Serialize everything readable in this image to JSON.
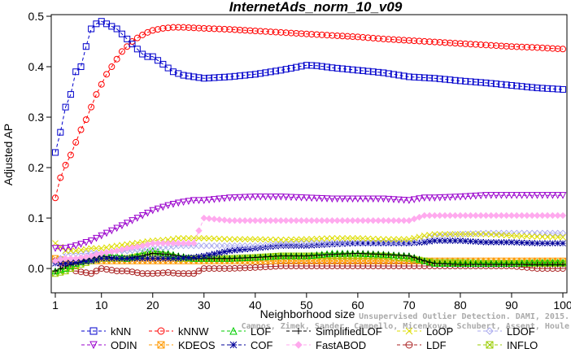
{
  "chart_data": {
    "type": "line",
    "title": "InternetAds_norm_10_v09",
    "xlabel": "Neighborhood size",
    "ylabel": "Adjusted AP",
    "xlim": [
      1,
      100
    ],
    "ylim": [
      -0.045,
      0.5
    ],
    "xticks": [
      1,
      10,
      20,
      30,
      40,
      50,
      60,
      70,
      80,
      90,
      100
    ],
    "yticks": [
      0.0,
      0.1,
      0.2,
      0.3,
      0.4,
      0.5
    ],
    "ytick_labels": [
      "0.0",
      "0.1",
      "0.2",
      "0.3",
      "0.4",
      "0.5"
    ],
    "grid": false,
    "legend_position": "bottom",
    "series": [
      {
        "name": "kNN",
        "color": "#0000cc",
        "marker": "square",
        "x": [
          1,
          2,
          3,
          4,
          5,
          6,
          7,
          8,
          9,
          10,
          11,
          12,
          13,
          14,
          15,
          16,
          17,
          18,
          19,
          20,
          22,
          24,
          26,
          28,
          30,
          35,
          40,
          45,
          50,
          52,
          55,
          60,
          65,
          70,
          75,
          80,
          85,
          90,
          95,
          100
        ],
        "y": [
          0.23,
          0.27,
          0.32,
          0.345,
          0.39,
          0.4,
          0.44,
          0.475,
          0.485,
          0.49,
          0.485,
          0.48,
          0.475,
          0.465,
          0.455,
          0.445,
          0.435,
          0.425,
          0.42,
          0.42,
          0.405,
          0.39,
          0.383,
          0.38,
          0.377,
          0.38,
          0.385,
          0.393,
          0.403,
          0.402,
          0.398,
          0.393,
          0.388,
          0.38,
          0.377,
          0.372,
          0.368,
          0.363,
          0.358,
          0.355
        ]
      },
      {
        "name": "kNNW",
        "color": "#ff0000",
        "marker": "circle",
        "x": [
          1,
          2,
          3,
          4,
          5,
          6,
          7,
          8,
          9,
          10,
          11,
          12,
          13,
          14,
          15,
          16,
          17,
          18,
          19,
          20,
          22,
          24,
          26,
          28,
          30,
          35,
          40,
          45,
          50,
          55,
          60,
          65,
          70,
          75,
          80,
          85,
          90,
          95,
          100
        ],
        "y": [
          0.14,
          0.18,
          0.205,
          0.225,
          0.25,
          0.275,
          0.295,
          0.32,
          0.345,
          0.365,
          0.385,
          0.4,
          0.415,
          0.43,
          0.44,
          0.45,
          0.457,
          0.463,
          0.468,
          0.472,
          0.476,
          0.478,
          0.478,
          0.477,
          0.476,
          0.474,
          0.471,
          0.468,
          0.465,
          0.462,
          0.459,
          0.455,
          0.452,
          0.449,
          0.446,
          0.443,
          0.44,
          0.438,
          0.435
        ]
      },
      {
        "name": "LOF",
        "color": "#00cc00",
        "marker": "triangle-up",
        "x": [
          1,
          3,
          5,
          8,
          10,
          13,
          15,
          18,
          20,
          23,
          25,
          28,
          30,
          35,
          40,
          45,
          50,
          55,
          60,
          65,
          70,
          73,
          75,
          80,
          85,
          90,
          95,
          100
        ],
        "y": [
          -0.005,
          0.0,
          0.01,
          0.02,
          0.03,
          0.025,
          0.02,
          0.03,
          0.035,
          0.03,
          0.025,
          0.02,
          0.02,
          0.02,
          0.022,
          0.025,
          0.025,
          0.03,
          0.03,
          0.028,
          0.025,
          0.015,
          0.01,
          0.01,
          0.01,
          0.01,
          0.012,
          0.012
        ]
      },
      {
        "name": "SimplifiedLOF",
        "color": "#000000",
        "marker": "plus",
        "x": [
          1,
          3,
          5,
          8,
          10,
          13,
          15,
          18,
          20,
          23,
          25,
          28,
          30,
          35,
          40,
          45,
          50,
          55,
          60,
          65,
          70,
          73,
          75,
          80,
          85,
          90,
          95,
          100
        ],
        "y": [
          -0.005,
          0.005,
          0.01,
          0.02,
          0.025,
          0.02,
          0.02,
          0.025,
          0.03,
          0.028,
          0.025,
          0.02,
          0.02,
          0.02,
          0.022,
          0.025,
          0.025,
          0.028,
          0.03,
          0.028,
          0.025,
          0.015,
          0.01,
          0.008,
          0.008,
          0.008,
          0.008,
          0.008
        ]
      },
      {
        "name": "LoOP",
        "color": "#dddd00",
        "marker": "x",
        "x": [
          1,
          3,
          5,
          8,
          10,
          13,
          15,
          18,
          20,
          23,
          25,
          28,
          30,
          35,
          40,
          45,
          50,
          55,
          60,
          65,
          70,
          73,
          75,
          80,
          85,
          90,
          95,
          100
        ],
        "y": [
          0.05,
          0.035,
          0.035,
          0.04,
          0.04,
          0.045,
          0.048,
          0.052,
          0.055,
          0.057,
          0.06,
          0.06,
          0.06,
          0.058,
          0.058,
          0.057,
          0.058,
          0.06,
          0.06,
          0.058,
          0.058,
          0.065,
          0.068,
          0.068,
          0.068,
          0.065,
          0.063,
          0.062
        ]
      },
      {
        "name": "LDOF",
        "color": "#aaaaee",
        "marker": "diamond",
        "x": [
          1,
          3,
          5,
          8,
          10,
          13,
          15,
          18,
          20,
          23,
          25,
          28,
          30,
          35,
          40,
          45,
          50,
          55,
          60,
          65,
          70,
          73,
          75,
          80,
          85,
          90,
          95,
          100
        ],
        "y": [
          0.01,
          0.03,
          0.03,
          0.03,
          0.03,
          0.035,
          0.035,
          0.038,
          0.04,
          0.042,
          0.045,
          0.045,
          0.045,
          0.045,
          0.045,
          0.048,
          0.05,
          0.05,
          0.05,
          0.05,
          0.05,
          0.06,
          0.065,
          0.068,
          0.07,
          0.07,
          0.07,
          0.07
        ]
      },
      {
        "name": "ODIN",
        "color": "#9900cc",
        "marker": "triangle-down",
        "x": [
          1,
          3,
          5,
          8,
          10,
          13,
          15,
          18,
          20,
          23,
          25,
          28,
          30,
          35,
          40,
          45,
          50,
          55,
          60,
          65,
          70,
          73,
          75,
          80,
          85,
          90,
          95,
          100
        ],
        "y": [
          0.04,
          0.04,
          0.045,
          0.055,
          0.065,
          0.08,
          0.09,
          0.105,
          0.115,
          0.125,
          0.13,
          0.135,
          0.135,
          0.14,
          0.142,
          0.142,
          0.14,
          0.138,
          0.138,
          0.138,
          0.135,
          0.14,
          0.14,
          0.142,
          0.145,
          0.145,
          0.145,
          0.145
        ]
      },
      {
        "name": "KDEOS",
        "color": "#ff9900",
        "marker": "square-x",
        "x": [
          1,
          3,
          5,
          8,
          10,
          13,
          15,
          18,
          20,
          23,
          25,
          28,
          30,
          35,
          40,
          45,
          50,
          55,
          60,
          65,
          70,
          73,
          75,
          80,
          85,
          90,
          95,
          100
        ],
        "y": [
          0.02,
          0.015,
          0.015,
          0.015,
          0.015,
          0.015,
          0.015,
          0.015,
          0.015,
          0.015,
          0.015,
          0.015,
          0.015,
          0.015,
          0.015,
          0.015,
          0.015,
          0.015,
          0.015,
          0.015,
          0.015,
          0.015,
          0.015,
          0.015,
          0.015,
          0.015,
          0.015,
          0.015
        ]
      },
      {
        "name": "COF",
        "color": "#000099",
        "marker": "asterisk",
        "x": [
          1,
          3,
          5,
          8,
          10,
          13,
          15,
          18,
          20,
          23,
          25,
          28,
          30,
          35,
          40,
          45,
          50,
          55,
          60,
          65,
          70,
          73,
          75,
          80,
          85,
          90,
          95,
          100
        ],
        "y": [
          0.01,
          0.01,
          0.012,
          0.015,
          0.02,
          0.02,
          0.02,
          0.02,
          0.02,
          0.02,
          0.02,
          0.022,
          0.025,
          0.035,
          0.04,
          0.045,
          0.045,
          0.048,
          0.05,
          0.05,
          0.05,
          0.052,
          0.055,
          0.055,
          0.052,
          0.052,
          0.05,
          0.05
        ]
      },
      {
        "name": "FastABOD",
        "color": "#ffaaee",
        "marker": "diamond-filled",
        "x": [
          1,
          3,
          5,
          8,
          10,
          13,
          15,
          18,
          20,
          23,
          25,
          28,
          30,
          35,
          40,
          45,
          50,
          55,
          60,
          65,
          70,
          73,
          75,
          80,
          85,
          90,
          95,
          100
        ],
        "y": [
          0.015,
          0.02,
          0.02,
          0.025,
          0.03,
          0.035,
          0.04,
          0.045,
          0.05,
          0.05,
          0.05,
          0.05,
          0.1,
          0.095,
          0.095,
          0.095,
          0.095,
          0.095,
          0.095,
          0.095,
          0.095,
          0.105,
          0.105,
          0.105,
          0.105,
          0.105,
          0.105,
          0.105
        ]
      },
      {
        "name": "LDF",
        "color": "#aa2222",
        "marker": "circle-bar",
        "x": [
          1,
          3,
          5,
          8,
          10,
          13,
          15,
          18,
          20,
          23,
          25,
          28,
          30,
          35,
          40,
          45,
          50,
          55,
          60,
          65,
          70,
          73,
          75,
          80,
          85,
          90,
          95,
          100
        ],
        "y": [
          0.015,
          0.005,
          -0.005,
          -0.01,
          0.0,
          -0.005,
          -0.005,
          -0.01,
          -0.01,
          -0.008,
          -0.01,
          -0.01,
          0.0,
          0.0,
          0.002,
          0.005,
          0.005,
          0.005,
          0.005,
          0.005,
          0.005,
          0.005,
          0.005,
          0.005,
          0.005,
          0.005,
          0.0,
          0.0
        ]
      },
      {
        "name": "INFLO",
        "color": "#99cc00",
        "marker": "square-x",
        "x": [
          1,
          3,
          5,
          8,
          10,
          13,
          15,
          18,
          20,
          23,
          25,
          28,
          30,
          35,
          40,
          45,
          50,
          55,
          60,
          65,
          70,
          73,
          75,
          80,
          85,
          90,
          95,
          100
        ],
        "y": [
          -0.01,
          -0.005,
          0.005,
          0.015,
          0.02,
          0.02,
          0.02,
          0.025,
          0.03,
          0.025,
          0.02,
          0.02,
          0.02,
          0.02,
          0.022,
          0.025,
          0.025,
          0.025,
          0.025,
          0.025,
          0.02,
          0.015,
          0.012,
          0.012,
          0.01,
          0.01,
          0.01,
          0.01
        ]
      }
    ]
  },
  "watermark": {
    "line1": "Unsupervised Outlier Detection. DAMI, 2015.",
    "line2": "Campos, Zimek, Sander, Campello, Micenkova, Schubert, Assent, Houle"
  },
  "legend_rows": [
    [
      "kNN",
      "kNNW",
      "LOF",
      "SimplifiedLOF",
      "LoOP",
      "LDOF"
    ],
    [
      "ODIN",
      "KDEOS",
      "COF",
      "FastABOD",
      "LDF",
      "INFLO"
    ]
  ]
}
